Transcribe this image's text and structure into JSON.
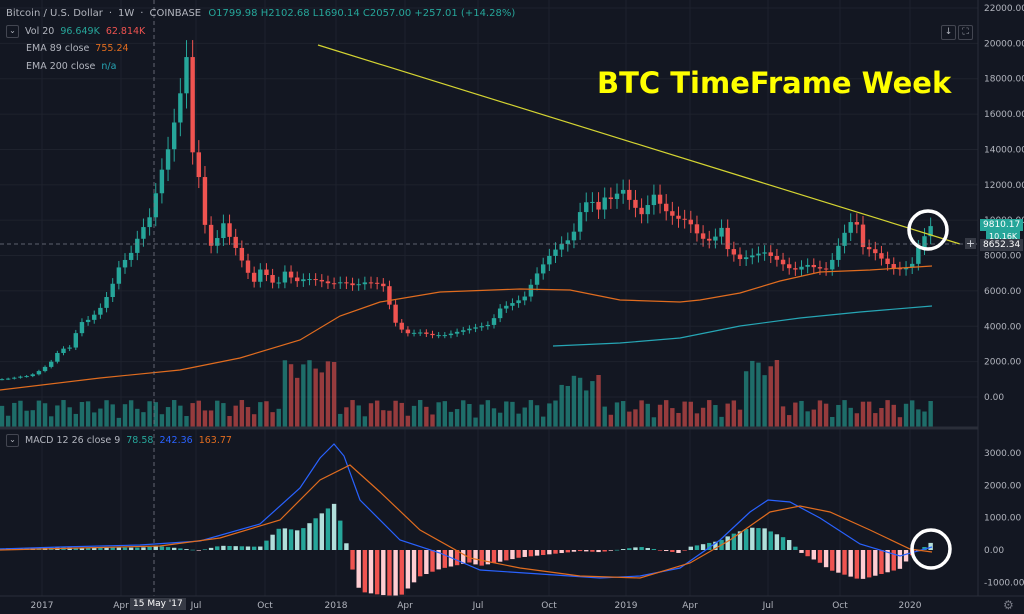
{
  "header": {
    "symbol": "Bitcoin / U.S. Dollar",
    "interval": "1W",
    "exchange": "COINBASE",
    "ohlc": "O1799.98 H2102.68 L1690.14 C2057.00 +257.01 (+14.28%)"
  },
  "indicators": {
    "vol_label": "Vol 20",
    "vol_v1": "96.649K",
    "vol_v2": "62.814K",
    "ema89_label": "EMA 89 close",
    "ema89_value": "755.24",
    "ema200_label": "EMA 200 close",
    "ema200_value": "n/a",
    "macd_label": "MACD 12 26 close 9",
    "macd_v1": "78.58",
    "macd_v2": "242.36",
    "macd_v3": "163.77"
  },
  "annotation": {
    "title": "BTC TimeFrame Week"
  },
  "price_axis": {
    "ticks": [
      "22000.00",
      "20000.00",
      "18000.00",
      "16000.00",
      "14000.00",
      "12000.00",
      "10000.00",
      "8000.00",
      "6000.00",
      "4000.00",
      "2000.00",
      "0.00"
    ],
    "last_price": "9810.17",
    "secondary_price": "10.16K",
    "crosshair_price": "8652.34"
  },
  "macd_axis": {
    "ticks": [
      "3000.00",
      "2000.00",
      "1000.00",
      "0.00",
      "-1000.00"
    ]
  },
  "time_axis": {
    "labels": [
      "2017",
      "Apr",
      "Jul",
      "Oct",
      "2018",
      "Apr",
      "Jul",
      "Oct",
      "2019",
      "Apr",
      "Jul",
      "Oct",
      "2020"
    ],
    "crosshair_date": "15 May '17"
  },
  "colors": {
    "up": "#26a69a",
    "down": "#ef5350",
    "ema89": "#e06c1f",
    "ema200": "#26a6b5",
    "trendline": "#d4d432",
    "annotation": "#ffff00",
    "macd_line": "#2962ff",
    "signal_line": "#e06c1f"
  },
  "icons": {
    "collapse": "chevron-down-icon",
    "download": "download-icon",
    "fullscreen": "fullscreen-icon",
    "settings": "gear-icon"
  }
}
